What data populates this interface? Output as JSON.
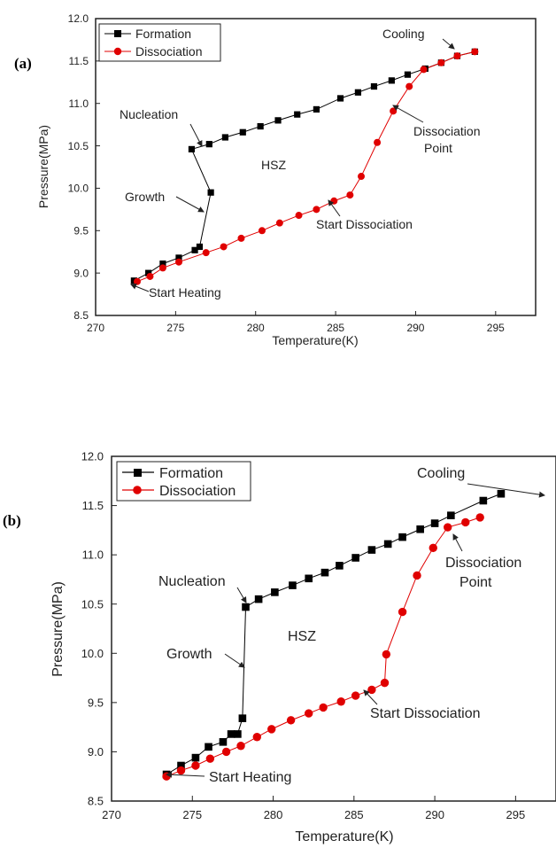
{
  "chart_data": [
    {
      "type": "line",
      "panel_label": "(a)",
      "xlabel": "Temperature(K)",
      "ylabel": "Pressure(MPa)",
      "xlim": [
        270,
        297.5
      ],
      "ylim": [
        8.5,
        12.0
      ],
      "xticks": [
        270,
        275,
        280,
        285,
        290,
        295
      ],
      "yticks": [
        8.5,
        9.0,
        9.5,
        10.0,
        10.5,
        11.0,
        11.5,
        12.0
      ],
      "x_tick_labels": [
        "270",
        "275",
        "280",
        "285",
        "290",
        "295"
      ],
      "y_tick_labels": [
        "8.5",
        "9.0",
        "9.5",
        "10.0",
        "10.5",
        "11.0",
        "11.5",
        "12.0"
      ],
      "legend_position": "top-left",
      "grid": false,
      "series": [
        {
          "name": "Formation",
          "color": "#000000",
          "marker": "square",
          "points": [
            [
              93.7,
              11.61
            ],
            [
              92.6,
              11.56
            ],
            [
              91.6,
              11.48
            ],
            [
              90.6,
              11.41
            ],
            [
              89.5,
              11.34
            ],
            [
              88.5,
              11.27
            ],
            [
              87.4,
              11.2
            ],
            [
              86.4,
              11.13
            ],
            [
              85.3,
              11.06
            ],
            [
              83.8,
              10.93
            ],
            [
              82.6,
              10.87
            ],
            [
              81.4,
              10.8
            ],
            [
              80.3,
              10.73
            ],
            [
              79.2,
              10.66
            ],
            [
              78.1,
              10.6
            ],
            [
              77.1,
              10.52
            ],
            [
              76.0,
              10.46
            ],
            [
              77.2,
              9.95
            ],
            [
              76.5,
              9.31
            ],
            [
              76.2,
              9.27
            ],
            [
              75.2,
              9.18
            ],
            [
              74.2,
              9.11
            ],
            [
              73.3,
              9.0
            ],
            [
              72.4,
              8.91
            ]
          ]
        },
        {
          "name": "Dissociation",
          "color": "#e00000",
          "marker": "circle",
          "points": [
            [
              72.6,
              8.9
            ],
            [
              73.4,
              8.96
            ],
            [
              74.2,
              9.06
            ],
            [
              75.2,
              9.13
            ],
            [
              76.9,
              9.24
            ],
            [
              78.0,
              9.31
            ],
            [
              79.1,
              9.41
            ],
            [
              80.4,
              9.5
            ],
            [
              81.5,
              9.59
            ],
            [
              82.7,
              9.68
            ],
            [
              83.8,
              9.75
            ],
            [
              84.9,
              9.85
            ],
            [
              85.9,
              9.92
            ],
            [
              86.6,
              10.14
            ],
            [
              87.6,
              10.54
            ],
            [
              88.6,
              10.91
            ],
            [
              89.6,
              11.2
            ],
            [
              90.5,
              11.4
            ],
            [
              91.6,
              11.48
            ],
            [
              92.6,
              11.56
            ],
            [
              93.7,
              11.61
            ]
          ]
        }
      ],
      "annotations": [
        {
          "text": "Cooling"
        },
        {
          "text": "Nucleation"
        },
        {
          "text": "Growth"
        },
        {
          "text": "HSZ"
        },
        {
          "text": "Dissociation"
        },
        {
          "text": "Point"
        },
        {
          "text": "Start Dissociation"
        },
        {
          "text": "Start Heating"
        }
      ]
    },
    {
      "type": "line",
      "panel_label": "(b)",
      "xlabel": "Temperature(K)",
      "ylabel": "Pressure(MPa)",
      "xlim": [
        270,
        297.5
      ],
      "ylim": [
        8.5,
        12.0
      ],
      "xticks": [
        270,
        275,
        280,
        285,
        290,
        295
      ],
      "yticks": [
        8.5,
        9.0,
        9.5,
        10.0,
        10.5,
        11.0,
        11.5,
        12.0
      ],
      "x_tick_labels": [
        "270",
        "275",
        "280",
        "285",
        "290",
        "295"
      ],
      "y_tick_labels": [
        "8.5",
        "9.0",
        "9.5",
        "10.0",
        "10.5",
        "11.0",
        "11.5",
        "12.0"
      ],
      "legend_position": "top-left",
      "grid": false,
      "series": [
        {
          "name": "Formation",
          "color": "#000000",
          "marker": "square",
          "points": [
            [
              94.1,
              11.62
            ],
            [
              93.0,
              11.55
            ],
            [
              91.0,
              11.4
            ],
            [
              90.0,
              11.32
            ],
            [
              89.1,
              11.26
            ],
            [
              88.0,
              11.18
            ],
            [
              87.1,
              11.11
            ],
            [
              86.1,
              11.05
            ],
            [
              85.1,
              10.97
            ],
            [
              84.1,
              10.89
            ],
            [
              83.2,
              10.82
            ],
            [
              82.2,
              10.76
            ],
            [
              81.2,
              10.69
            ],
            [
              80.1,
              10.62
            ],
            [
              79.1,
              10.55
            ],
            [
              78.3,
              10.47
            ],
            [
              78.1,
              9.34
            ],
            [
              77.8,
              9.18
            ],
            [
              77.4,
              9.18
            ],
            [
              76.9,
              9.1
            ],
            [
              76.0,
              9.05
            ],
            [
              75.2,
              8.94
            ],
            [
              74.3,
              8.86
            ],
            [
              73.4,
              8.77
            ]
          ]
        },
        {
          "name": "Dissociation",
          "color": "#e00000",
          "marker": "circle",
          "points": [
            [
              73.4,
              8.75
            ],
            [
              74.3,
              8.81
            ],
            [
              75.2,
              8.86
            ],
            [
              76.1,
              8.93
            ],
            [
              77.1,
              9.0
            ],
            [
              78.0,
              9.06
            ],
            [
              79.0,
              9.15
            ],
            [
              79.9,
              9.23
            ],
            [
              81.1,
              9.32
            ],
            [
              82.2,
              9.39
            ],
            [
              83.1,
              9.45
            ],
            [
              84.2,
              9.51
            ],
            [
              85.1,
              9.57
            ],
            [
              86.1,
              9.63
            ],
            [
              86.9,
              9.7
            ],
            [
              87.0,
              9.99
            ],
            [
              88.0,
              10.42
            ],
            [
              88.9,
              10.79
            ],
            [
              89.9,
              11.07
            ],
            [
              90.8,
              11.28
            ],
            [
              91.9,
              11.33
            ],
            [
              92.8,
              11.38
            ]
          ]
        }
      ],
      "annotations": [
        {
          "text": "Cooling"
        },
        {
          "text": "Nucleation"
        },
        {
          "text": "Growth"
        },
        {
          "text": "HSZ"
        },
        {
          "text": "Dissociation"
        },
        {
          "text": "Point"
        },
        {
          "text": "Start Dissociation"
        },
        {
          "text": "Start Heating"
        }
      ]
    }
  ]
}
